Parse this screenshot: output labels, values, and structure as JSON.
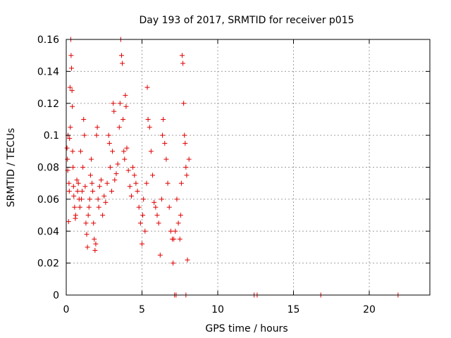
{
  "chart_data": {
    "type": "scatter",
    "title": "Day 193 of 2017, SRMTID for receiver p015",
    "xlabel": "GPS time / hours",
    "ylabel": "SRMTID / TECUs",
    "xlim": [
      0,
      24
    ],
    "ylim": [
      0,
      0.16
    ],
    "xticks": [
      0,
      5,
      10,
      15,
      20
    ],
    "yticks": [
      0,
      0.02,
      0.04,
      0.06,
      0.08,
      0.1,
      0.12,
      0.14,
      0.16
    ],
    "xtick_labels": [
      "0",
      "5",
      "10",
      "15",
      "20"
    ],
    "ytick_labels": [
      "0",
      "0.02",
      "0.04",
      "0.06",
      "0.08",
      "0.1",
      "0.12",
      "0.14",
      "0.16"
    ],
    "grid": true,
    "marker": "+",
    "color": "#e00000",
    "series": [
      {
        "name": "SRMTID",
        "points": [
          [
            0.05,
            0.092
          ],
          [
            0.08,
            0.085
          ],
          [
            0.1,
            0.078
          ],
          [
            0.12,
            0.1
          ],
          [
            0.15,
            0.046
          ],
          [
            0.18,
            0.07
          ],
          [
            0.2,
            0.065
          ],
          [
            0.22,
            0.098
          ],
          [
            0.25,
            0.13
          ],
          [
            0.27,
            0.105
          ],
          [
            0.3,
            0.16
          ],
          [
            0.32,
            0.15
          ],
          [
            0.35,
            0.142
          ],
          [
            0.38,
            0.128
          ],
          [
            0.4,
            0.118
          ],
          [
            0.42,
            0.09
          ],
          [
            0.45,
            0.08
          ],
          [
            0.48,
            0.068
          ],
          [
            0.5,
            0.062
          ],
          [
            0.55,
            0.055
          ],
          [
            0.6,
            0.048
          ],
          [
            0.62,
            0.05
          ],
          [
            0.7,
            0.072
          ],
          [
            0.75,
            0.065
          ],
          [
            0.8,
            0.07
          ],
          [
            0.85,
            0.06
          ],
          [
            0.9,
            0.055
          ],
          [
            0.95,
            0.09
          ],
          [
            1.0,
            0.06
          ],
          [
            1.05,
            0.065
          ],
          [
            1.1,
            0.08
          ],
          [
            1.15,
            0.11
          ],
          [
            1.2,
            0.1
          ],
          [
            1.25,
            0.068
          ],
          [
            1.3,
            0.045
          ],
          [
            1.35,
            0.038
          ],
          [
            1.4,
            0.03
          ],
          [
            1.45,
            0.05
          ],
          [
            1.5,
            0.055
          ],
          [
            1.55,
            0.06
          ],
          [
            1.6,
            0.075
          ],
          [
            1.65,
            0.085
          ],
          [
            1.7,
            0.07
          ],
          [
            1.75,
            0.065
          ],
          [
            1.8,
            0.045
          ],
          [
            1.85,
            0.035
          ],
          [
            1.9,
            0.028
          ],
          [
            1.95,
            0.032
          ],
          [
            2.0,
            0.1
          ],
          [
            2.05,
            0.105
          ],
          [
            2.1,
            0.06
          ],
          [
            2.15,
            0.055
          ],
          [
            2.2,
            0.068
          ],
          [
            2.3,
            0.072
          ],
          [
            2.4,
            0.05
          ],
          [
            2.5,
            0.062
          ],
          [
            2.6,
            0.058
          ],
          [
            2.7,
            0.07
          ],
          [
            2.8,
            0.1
          ],
          [
            2.85,
            0.095
          ],
          [
            2.9,
            0.08
          ],
          [
            3.0,
            0.065
          ],
          [
            3.05,
            0.09
          ],
          [
            3.1,
            0.12
          ],
          [
            3.15,
            0.115
          ],
          [
            3.2,
            0.072
          ],
          [
            3.3,
            0.076
          ],
          [
            3.4,
            0.082
          ],
          [
            3.5,
            0.105
          ],
          [
            3.55,
            0.12
          ],
          [
            3.6,
            0.16
          ],
          [
            3.65,
            0.15
          ],
          [
            3.7,
            0.145
          ],
          [
            3.75,
            0.11
          ],
          [
            3.8,
            0.09
          ],
          [
            3.85,
            0.085
          ],
          [
            3.9,
            0.125
          ],
          [
            3.95,
            0.118
          ],
          [
            4.0,
            0.092
          ],
          [
            4.1,
            0.078
          ],
          [
            4.2,
            0.068
          ],
          [
            4.3,
            0.062
          ],
          [
            4.4,
            0.08
          ],
          [
            4.5,
            0.075
          ],
          [
            4.6,
            0.07
          ],
          [
            4.7,
            0.065
          ],
          [
            4.8,
            0.055
          ],
          [
            4.9,
            0.045
          ],
          [
            5.0,
            0.032
          ],
          [
            5.05,
            0.05
          ],
          [
            5.1,
            0.06
          ],
          [
            5.2,
            0.04
          ],
          [
            5.3,
            0.07
          ],
          [
            5.35,
            0.13
          ],
          [
            5.4,
            0.11
          ],
          [
            5.5,
            0.105
          ],
          [
            5.6,
            0.09
          ],
          [
            5.7,
            0.075
          ],
          [
            5.8,
            0.058
          ],
          [
            5.9,
            0.055
          ],
          [
            6.0,
            0.05
          ],
          [
            6.1,
            0.045
          ],
          [
            6.2,
            0.025
          ],
          [
            6.3,
            0.06
          ],
          [
            6.35,
            0.1
          ],
          [
            6.4,
            0.11
          ],
          [
            6.5,
            0.095
          ],
          [
            6.6,
            0.085
          ],
          [
            6.7,
            0.07
          ],
          [
            6.8,
            0.055
          ],
          [
            6.9,
            0.04
          ],
          [
            7.0,
            0.035
          ],
          [
            7.05,
            0.02
          ],
          [
            7.1,
            0.035
          ],
          [
            7.2,
            0.04
          ],
          [
            7.3,
            0.06
          ],
          [
            7.4,
            0.045
          ],
          [
            7.5,
            0.035
          ],
          [
            7.55,
            0.05
          ],
          [
            7.6,
            0.07
          ],
          [
            7.65,
            0.15
          ],
          [
            7.7,
            0.145
          ],
          [
            7.75,
            0.12
          ],
          [
            7.8,
            0.1
          ],
          [
            7.85,
            0.095
          ],
          [
            7.9,
            0.08
          ],
          [
            7.95,
            0.075
          ],
          [
            8.0,
            0.022
          ],
          [
            8.1,
            0.085
          ],
          [
            7.15,
            0.0
          ],
          [
            7.25,
            0.0
          ],
          [
            7.9,
            0.0
          ],
          [
            12.4,
            0.0
          ],
          [
            12.6,
            0.0
          ],
          [
            16.8,
            0.0
          ],
          [
            21.9,
            0.0
          ]
        ]
      }
    ]
  }
}
